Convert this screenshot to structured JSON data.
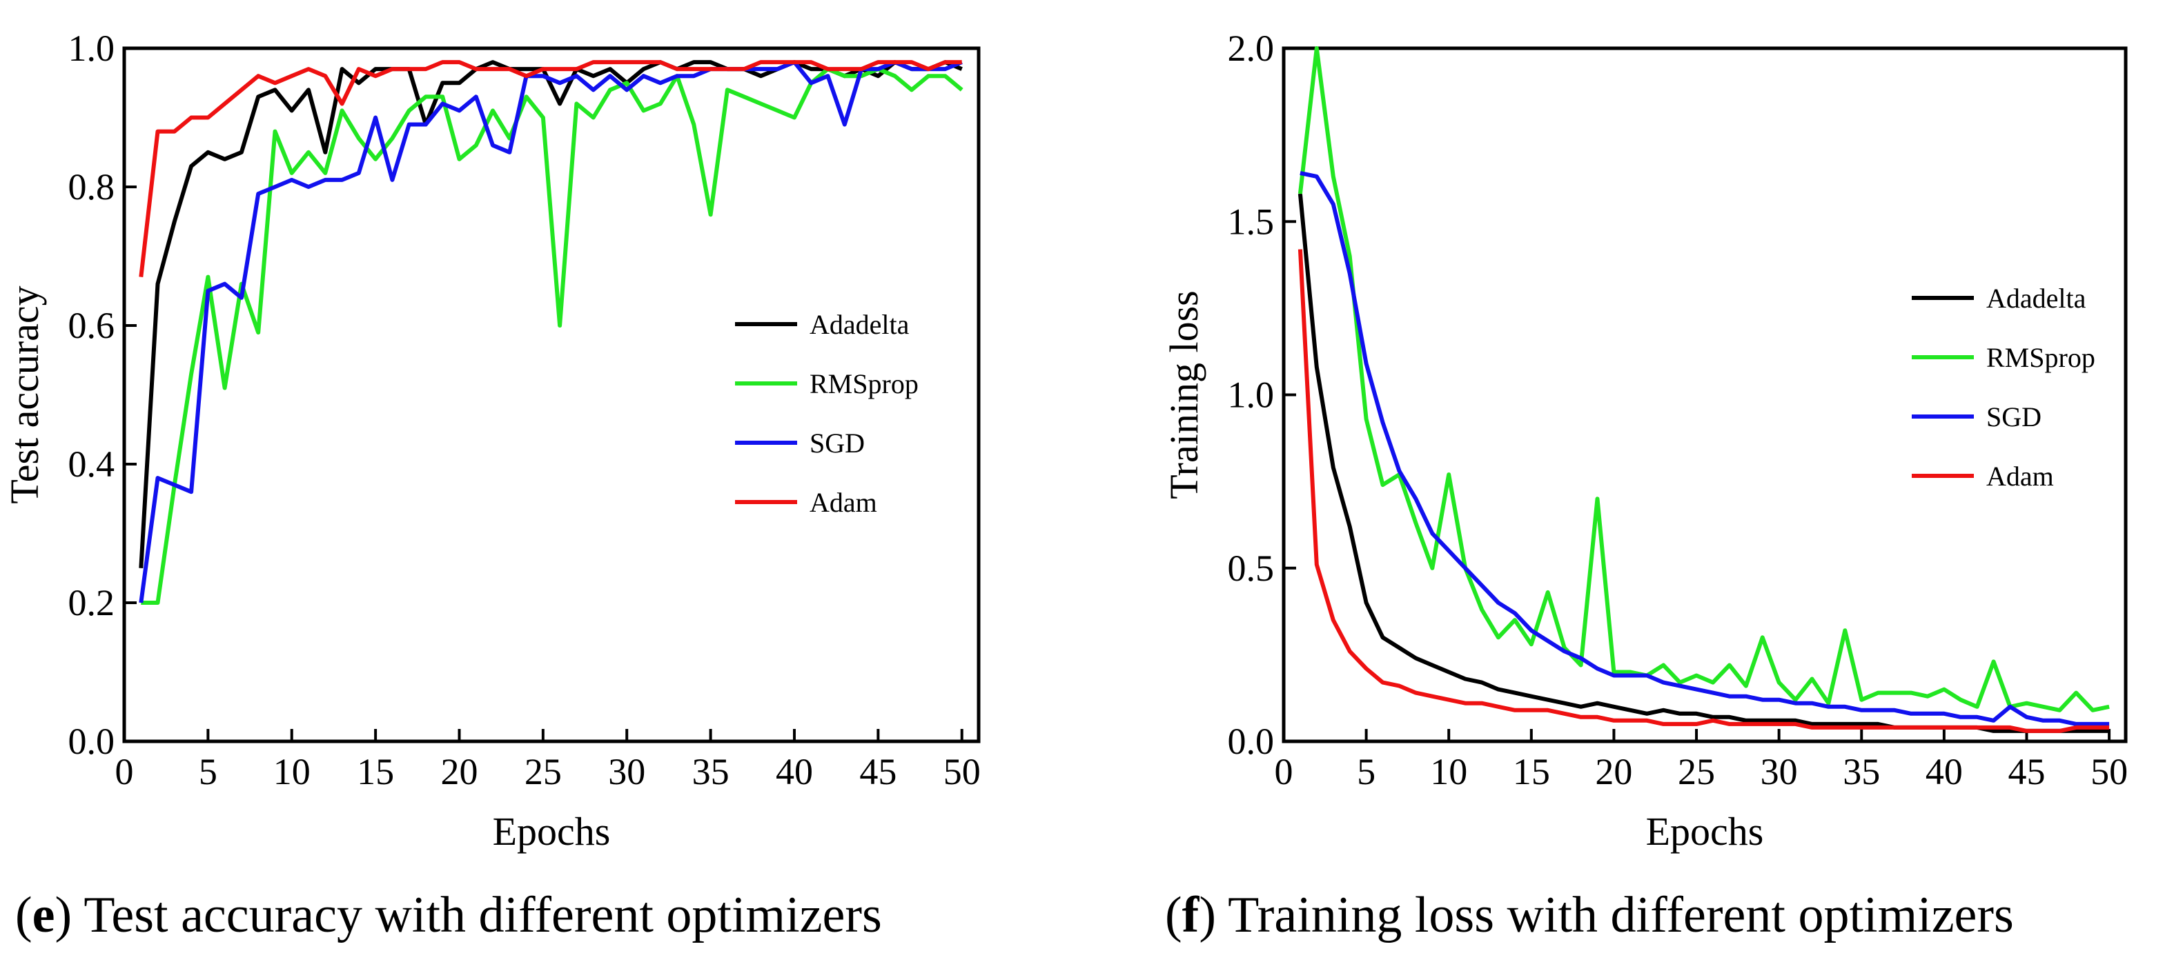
{
  "captions": {
    "e": {
      "letter": "e",
      "text": " Test accuracy with different optimizers"
    },
    "f": {
      "letter": "f",
      "text": " Training loss with different optimizers"
    }
  },
  "chart_data": [
    {
      "id": "e",
      "type": "line",
      "xlabel": "Epochs",
      "ylabel": "Test accuracy",
      "xlim": [
        0,
        51
      ],
      "ylim": [
        0.0,
        1.0
      ],
      "xticks": [
        0,
        5,
        10,
        15,
        20,
        25,
        30,
        35,
        40,
        45,
        50
      ],
      "yticks": [
        0.0,
        0.2,
        0.4,
        0.6,
        0.8,
        1.0
      ],
      "ytick_labels": [
        "0.0",
        "0.2",
        "0.4",
        "0.6",
        "0.8",
        "1.0"
      ],
      "grid": false,
      "legend_position": "right",
      "x": [
        1,
        2,
        3,
        4,
        5,
        6,
        7,
        8,
        9,
        10,
        11,
        12,
        13,
        14,
        15,
        16,
        17,
        18,
        19,
        20,
        21,
        22,
        23,
        24,
        25,
        26,
        27,
        28,
        29,
        30,
        31,
        32,
        33,
        34,
        35,
        36,
        37,
        38,
        39,
        40,
        41,
        42,
        43,
        44,
        45,
        46,
        47,
        48,
        49,
        50
      ],
      "series": [
        {
          "name": "Adadelta",
          "color": "#000000",
          "values": [
            0.25,
            0.66,
            0.75,
            0.83,
            0.85,
            0.84,
            0.85,
            0.93,
            0.94,
            0.91,
            0.94,
            0.85,
            0.97,
            0.95,
            0.97,
            0.97,
            0.97,
            0.89,
            0.95,
            0.95,
            0.97,
            0.98,
            0.97,
            0.97,
            0.97,
            0.92,
            0.97,
            0.96,
            0.97,
            0.95,
            0.97,
            0.98,
            0.97,
            0.98,
            0.98,
            0.97,
            0.97,
            0.96,
            0.97,
            0.98,
            0.97,
            0.97,
            0.96,
            0.97,
            0.96,
            0.98,
            0.97,
            0.97,
            0.98,
            0.97
          ]
        },
        {
          "name": "RMSprop",
          "color": "#22e622",
          "values": [
            0.2,
            0.2,
            0.37,
            0.53,
            0.67,
            0.51,
            0.66,
            0.59,
            0.88,
            0.82,
            0.85,
            0.82,
            0.91,
            0.87,
            0.84,
            0.87,
            0.91,
            0.93,
            0.93,
            0.84,
            0.86,
            0.91,
            0.87,
            0.93,
            0.9,
            0.6,
            0.92,
            0.9,
            0.94,
            0.95,
            0.91,
            0.92,
            0.96,
            0.89,
            0.76,
            0.94,
            0.93,
            0.92,
            0.91,
            0.9,
            0.95,
            0.97,
            0.96,
            0.96,
            0.97,
            0.96,
            0.94,
            0.96,
            0.96,
            0.94
          ]
        },
        {
          "name": "SGD",
          "color": "#1111ee",
          "values": [
            0.2,
            0.38,
            0.37,
            0.36,
            0.65,
            0.66,
            0.64,
            0.79,
            0.8,
            0.81,
            0.8,
            0.81,
            0.81,
            0.82,
            0.9,
            0.81,
            0.89,
            0.89,
            0.92,
            0.91,
            0.93,
            0.86,
            0.85,
            0.96,
            0.96,
            0.95,
            0.96,
            0.94,
            0.96,
            0.94,
            0.96,
            0.95,
            0.96,
            0.96,
            0.97,
            0.97,
            0.97,
            0.97,
            0.97,
            0.98,
            0.95,
            0.96,
            0.89,
            0.97,
            0.97,
            0.98,
            0.97,
            0.97,
            0.97,
            0.98
          ]
        },
        {
          "name": "Adam",
          "color": "#ee1111",
          "values": [
            0.67,
            0.88,
            0.88,
            0.9,
            0.9,
            0.92,
            0.94,
            0.96,
            0.95,
            0.96,
            0.97,
            0.96,
            0.92,
            0.97,
            0.96,
            0.97,
            0.97,
            0.97,
            0.98,
            0.98,
            0.97,
            0.97,
            0.97,
            0.96,
            0.97,
            0.97,
            0.97,
            0.98,
            0.98,
            0.98,
            0.98,
            0.98,
            0.97,
            0.97,
            0.97,
            0.97,
            0.97,
            0.98,
            0.98,
            0.98,
            0.98,
            0.97,
            0.97,
            0.97,
            0.98,
            0.98,
            0.98,
            0.97,
            0.98,
            0.98
          ]
        }
      ]
    },
    {
      "id": "f",
      "type": "line",
      "xlabel": "Epochs",
      "ylabel": "Training loss",
      "xlim": [
        0,
        51
      ],
      "ylim": [
        0.0,
        2.0
      ],
      "xticks": [
        0,
        5,
        10,
        15,
        20,
        25,
        30,
        35,
        40,
        45,
        50
      ],
      "yticks": [
        0.0,
        0.5,
        1.0,
        1.5,
        2.0
      ],
      "ytick_labels": [
        "0.0",
        "0.5",
        "1.0",
        "1.5",
        "2.0"
      ],
      "grid": false,
      "legend_position": "right",
      "x": [
        1,
        2,
        3,
        4,
        5,
        6,
        7,
        8,
        9,
        10,
        11,
        12,
        13,
        14,
        15,
        16,
        17,
        18,
        19,
        20,
        21,
        22,
        23,
        24,
        25,
        26,
        27,
        28,
        29,
        30,
        31,
        32,
        33,
        34,
        35,
        36,
        37,
        38,
        39,
        40,
        41,
        42,
        43,
        44,
        45,
        46,
        47,
        48,
        49,
        50
      ],
      "series": [
        {
          "name": "Adadelta",
          "color": "#000000",
          "values": [
            1.58,
            1.08,
            0.79,
            0.62,
            0.4,
            0.3,
            0.27,
            0.24,
            0.22,
            0.2,
            0.18,
            0.17,
            0.15,
            0.14,
            0.13,
            0.12,
            0.11,
            0.1,
            0.11,
            0.1,
            0.09,
            0.08,
            0.09,
            0.08,
            0.08,
            0.07,
            0.07,
            0.06,
            0.06,
            0.06,
            0.06,
            0.05,
            0.05,
            0.05,
            0.05,
            0.05,
            0.04,
            0.04,
            0.04,
            0.04,
            0.04,
            0.04,
            0.03,
            0.03,
            0.03,
            0.03,
            0.03,
            0.03,
            0.03,
            0.03
          ]
        },
        {
          "name": "RMSprop",
          "color": "#22e622",
          "values": [
            1.58,
            2.0,
            1.63,
            1.4,
            0.93,
            0.74,
            0.77,
            0.63,
            0.5,
            0.77,
            0.5,
            0.38,
            0.3,
            0.35,
            0.28,
            0.43,
            0.27,
            0.22,
            0.7,
            0.2,
            0.2,
            0.19,
            0.22,
            0.17,
            0.19,
            0.17,
            0.22,
            0.16,
            0.3,
            0.17,
            0.12,
            0.18,
            0.11,
            0.32,
            0.12,
            0.14,
            0.14,
            0.14,
            0.13,
            0.15,
            0.12,
            0.1,
            0.23,
            0.1,
            0.11,
            0.1,
            0.09,
            0.14,
            0.09,
            0.1
          ]
        },
        {
          "name": "SGD",
          "color": "#1111ee",
          "values": [
            1.64,
            1.63,
            1.55,
            1.35,
            1.09,
            0.92,
            0.78,
            0.7,
            0.6,
            0.55,
            0.5,
            0.45,
            0.4,
            0.37,
            0.32,
            0.29,
            0.26,
            0.24,
            0.21,
            0.19,
            0.19,
            0.19,
            0.17,
            0.16,
            0.15,
            0.14,
            0.13,
            0.13,
            0.12,
            0.12,
            0.11,
            0.11,
            0.1,
            0.1,
            0.09,
            0.09,
            0.09,
            0.08,
            0.08,
            0.08,
            0.07,
            0.07,
            0.06,
            0.1,
            0.07,
            0.06,
            0.06,
            0.05,
            0.05,
            0.05
          ]
        },
        {
          "name": "Adam",
          "color": "#ee1111",
          "values": [
            1.42,
            0.51,
            0.35,
            0.26,
            0.21,
            0.17,
            0.16,
            0.14,
            0.13,
            0.12,
            0.11,
            0.11,
            0.1,
            0.09,
            0.09,
            0.09,
            0.08,
            0.07,
            0.07,
            0.06,
            0.06,
            0.06,
            0.05,
            0.05,
            0.05,
            0.06,
            0.05,
            0.05,
            0.05,
            0.05,
            0.05,
            0.04,
            0.04,
            0.04,
            0.04,
            0.04,
            0.04,
            0.04,
            0.04,
            0.04,
            0.04,
            0.04,
            0.04,
            0.04,
            0.03,
            0.03,
            0.03,
            0.04,
            0.04,
            0.04
          ]
        }
      ]
    }
  ]
}
